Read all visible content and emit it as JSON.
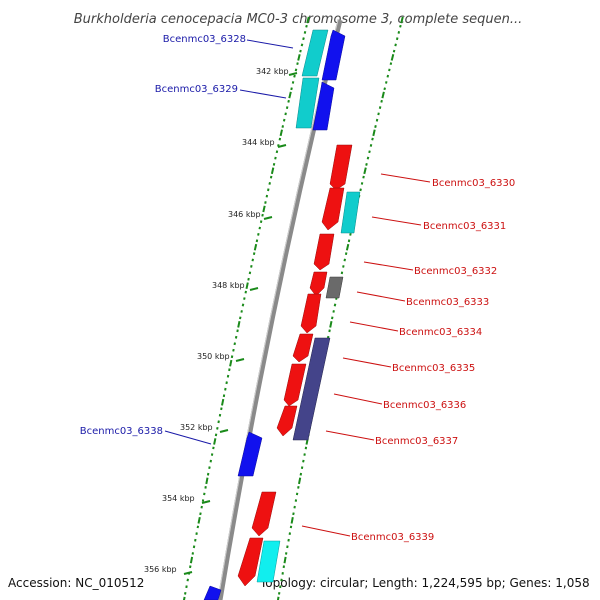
{
  "title": "Burkholderia cenocepacia MC0-3 chromosome 3, complete sequen...",
  "footer": {
    "accession": "Accession: NC_010512",
    "topology": "Topology: circular; Length: 1,224,595 bp; Genes: 1,058"
  },
  "colors": {
    "backbone": "#8a8a8a",
    "gc_tick": "#1a8a1a",
    "label_forward": "#1a1aa8",
    "label_reverse": "#cc1111",
    "red_gene": "#ee1111",
    "blue_gene": "#1111ee",
    "cyan_gene": "#11cccc",
    "gray_gene": "#6a6a6a",
    "purple_gene": "#44448a"
  },
  "kbp_labels": [
    "342 kbp",
    "344 kbp",
    "346 kbp",
    "348 kbp",
    "350 kbp",
    "352 kbp",
    "354 kbp",
    "356 kbp"
  ],
  "gene_labels": {
    "forward": [
      "Bcenmc03_6328",
      "Bcenmc03_6329",
      "Bcenmc03_6338"
    ],
    "reverse": [
      "Bcenmc03_6330",
      "Bcenmc03_6331",
      "Bcenmc03_6332",
      "Bcenmc03_6333",
      "Bcenmc03_6334",
      "Bcenmc03_6335",
      "Bcenmc03_6336",
      "Bcenmc03_6337",
      "Bcenmc03_6339"
    ]
  }
}
